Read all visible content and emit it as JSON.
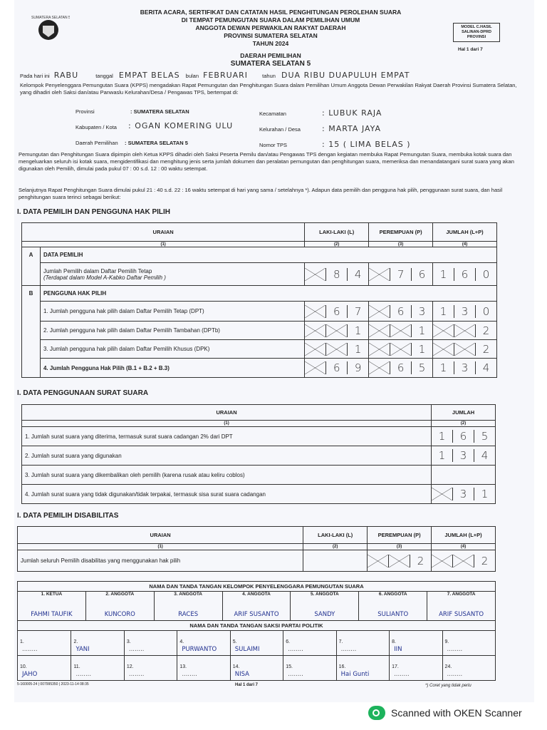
{
  "header": {
    "logo_text": "SUMATERA SELATAN 5",
    "lines": [
      "BERITA ACARA, SERTIFIKAT DAN CATATAN HASIL PENGHITUNGAN PEROLEHAN SUARA",
      "DI TEMPAT PEMUNGUTAN SUARA DALAM PEMILIHAN UMUM",
      "ANGGOTA DEWAN PERWAKILAN RAKYAT DAERAH",
      "PROVINSI SUMATERA SELATAN",
      "TAHUN 2024"
    ],
    "dapil_label": "DAERAH PEMILIHAN",
    "dapil": "SUMATERA SELATAN 5",
    "model_box": [
      "MODEL C.HASIL",
      "SALINAN-DPRD",
      "PROVINSI"
    ],
    "page": "Hal 1 dari 7"
  },
  "intro": {
    "hari_label": "Pada hari ini",
    "hari": "RABU",
    "tanggal_label": "tanggal",
    "tanggal": "EMPAT BELAS",
    "bulan_label": "bulan",
    "bulan": "FEBRUARI",
    "tahun_label": "tahun",
    "tahun": "DUA RIBU DUAPULUH EMPAT",
    "text": "Kelompok Penyelenggara Pemungutan Suara (KPPS) mengadakan Rapat Pemungutan dan Penghitungan Suara dalam Pemilihan Umum Anggota Dewan Perwakilan Rakyat Daerah Provinsi Sumatera Selatan, yang dihadiri oleh Saksi dan/atau Panwaslu Kelurahan/Desa / Pengawas TPS, bertempat di:"
  },
  "location": {
    "provinsi_label": "Provinsi",
    "provinsi": ": SUMATERA SELATAN",
    "kab_label": "Kabupaten / Kota",
    "kab": ": OGAN KOMERING ULU",
    "dapil_label": "Daerah Pemilihan",
    "dapil": ": SUMATERA SELATAN 5",
    "kec_label": "Kecamatan",
    "kec": ": LUBUK RAJA",
    "desa_label": "Kelurahan / Desa",
    "desa": ": MARTA JAYA",
    "tps_label": "Nomor TPS",
    "tps": ": 15 ( LIMA BELAS )"
  },
  "para1": "Pemungutan dan Penghitungan Suara dipimpin oleh Ketua KPPS dihadiri oleh Saksi Peserta Pemilu dan/atau Pengawas TPS dengan kegiatan membuka Rapat Pemungutan Suara, membuka kotak suara dan mengeluarkan seluruh isi kotak suara, mengidentifikasi dan menghitung jenis serta jumlah dokumen dan peralatan pemungutan dan penghitungan suara, memeriksa dan menandatangani surat suara yang akan digunakan oleh Pemilih, dimulai pada pukul 07 : 00 s.d. 12 : 00 waktu setempat.",
  "para2": "Selanjutnya Rapat Penghitungan Suara dimulai pukul 21 : 40 s.d. 22 : 16 waktu setempat di hari yang sama / setelahnya *). Adapun data pemilih dan pengguna hak pilih, penggunaan surat suara, dan hasil penghitungan suara terinci sebagai berikut:",
  "section1": {
    "title": "I. DATA PEMILIH DAN PENGGUNA HAK PILIH",
    "cols": [
      "URAIAN",
      "LAKI-LAKI (L)",
      "PEREMPUAN (P)",
      "JUMLAH (L+P)"
    ],
    "nums": [
      "(1)",
      "(2)",
      "(3)",
      "(4)"
    ],
    "a_code": "A",
    "a_title": "DATA PEMILIH",
    "a_row": {
      "label": "Jumlah Pemilih dalam Daftar Pemilih Tetap",
      "sub": "(Terdapat dalam Model A-Kabko Daftar Pemilih )",
      "l": [
        "X",
        "8",
        "4"
      ],
      "p": [
        "X",
        "7",
        "6"
      ],
      "j": [
        "1",
        "6",
        "0"
      ]
    },
    "b_code": "B",
    "b_title": "PENGGUNA HAK PILIH",
    "b_rows": [
      {
        "label": "1. Jumlah pengguna hak pilih dalam Daftar Pemilih Tetap (DPT)",
        "l": [
          "X",
          "6",
          "7"
        ],
        "p": [
          "X",
          "6",
          "3"
        ],
        "j": [
          "1",
          "3",
          "0"
        ]
      },
      {
        "label": "2. Jumlah pengguna hak pilih dalam Daftar Pemilih Tambahan (DPTb)",
        "l": [
          "X",
          "X",
          "1"
        ],
        "p": [
          "X",
          "X",
          "1"
        ],
        "j": [
          "X",
          "X",
          "2"
        ]
      },
      {
        "label": "3. Jumlah pengguna hak pilih dalam Daftar Pemilih Khusus (DPK)",
        "l": [
          "X",
          "X",
          "1"
        ],
        "p": [
          "X",
          "X",
          "1"
        ],
        "j": [
          "X",
          "X",
          "2"
        ]
      },
      {
        "label": "4. Jumlah Pengguna Hak Pilih (B.1 + B.2 + B.3)",
        "l": [
          "X",
          "6",
          "9"
        ],
        "p": [
          "X",
          "6",
          "5"
        ],
        "j": [
          "1",
          "3",
          "4"
        ]
      }
    ]
  },
  "section2": {
    "title": "I. DATA PENGGUNAAN SURAT SUARA",
    "cols": [
      "URAIAN",
      "JUMLAH"
    ],
    "nums": [
      "(1)",
      "(2)"
    ],
    "rows": [
      {
        "label": "1. Jumlah surat suara yang diterima, termasuk surat suara cadangan 2% dari DPT",
        "v": [
          "1",
          "6",
          "5"
        ]
      },
      {
        "label": "2. Jumlah surat suara yang digunakan",
        "v": [
          "1",
          "3",
          "4"
        ]
      },
      {
        "label": "3. Jumlah surat suara yang dikembalikan oleh pemilih (karena rusak atau keliru coblos)",
        "v": [
          "X",
          "X",
          "X"
        ]
      },
      {
        "label": "4. Jumlah surat suara yang tidak digunakan/tidak terpakai, termasuk sisa surat suara cadangan",
        "v": [
          "X",
          "3",
          "1"
        ]
      }
    ]
  },
  "section3": {
    "title": "I. DATA PEMILIH DISABILITAS",
    "cols": [
      "URAIAN",
      "LAKI-LAKI (L)",
      "PEREMPUAN (P)",
      "JUMLAH (L+P)"
    ],
    "nums": [
      "(1)",
      "(2)",
      "(3)",
      "(4)"
    ],
    "row": {
      "label": "Jumlah seluruh Pemilih disabilitas yang menggunakan hak pilih",
      "l": [
        "X",
        "X",
        "X"
      ],
      "p": [
        "X",
        "X",
        "2"
      ],
      "j": [
        "X",
        "X",
        "2"
      ]
    }
  },
  "kpps": {
    "title": "NAMA DAN TANDA TANGAN KELOMPOK PENYELENGGARA PEMUNGUTAN SUARA",
    "members": [
      {
        "role": "1. KETUA",
        "name": "FAHMI TAUFIK"
      },
      {
        "role": "2. ANGGOTA",
        "name": "KUNCORO"
      },
      {
        "role": "3. ANGGOTA",
        "name": "RACES"
      },
      {
        "role": "4. ANGGOTA",
        "name": "ARIF SUSANTO"
      },
      {
        "role": "5. ANGGOTA",
        "name": "SANDY"
      },
      {
        "role": "6. ANGGOTA",
        "name": "SULIANTO"
      },
      {
        "role": "7. ANGGOTA",
        "name": "ARIF SUSANTO"
      }
    ]
  },
  "saksi": {
    "title": "NAMA DAN TANDA TANGAN SAKSI PARTAI POLITIK",
    "cells": [
      {
        "no": "1.",
        "name": ""
      },
      {
        "no": "2.",
        "name": "YANI"
      },
      {
        "no": "3.",
        "name": ""
      },
      {
        "no": "4.",
        "name": "PURWANTO"
      },
      {
        "no": "5.",
        "name": "SULAIMI"
      },
      {
        "no": "6.",
        "name": ""
      },
      {
        "no": "7.",
        "name": ""
      },
      {
        "no": "8.",
        "name": "IIN"
      },
      {
        "no": "9.",
        "name": ""
      },
      {
        "no": "10.",
        "name": "JAHO"
      },
      {
        "no": "11.",
        "name": ""
      },
      {
        "no": "12.",
        "name": ""
      },
      {
        "no": "13.",
        "name": ""
      },
      {
        "no": "14.",
        "name": "NISA"
      },
      {
        "no": "15.",
        "name": ""
      },
      {
        "no": "16.",
        "name": "Hai Gunti"
      },
      {
        "no": "17.",
        "name": ""
      },
      {
        "no": "24.",
        "name": ""
      }
    ]
  },
  "footer": {
    "code": "5-160005-24 | 007995350 | 2023-11-14 08:35",
    "page": "Hal 1 dari 7",
    "note": "*) Coret yang tidak perlu"
  },
  "scanner": {
    "label": "Scanned with OKEN Scanner",
    "icon": "oken-scanner-logo",
    "color": "#1db35c"
  }
}
